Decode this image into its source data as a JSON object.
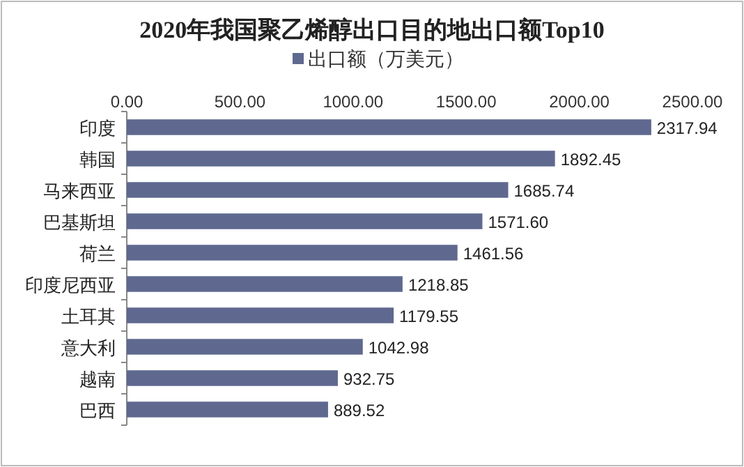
{
  "chart_data": {
    "type": "bar",
    "orientation": "horizontal",
    "title": "2020年我国聚乙烯醇出口目的地出口额Top10",
    "categories": [
      "印度",
      "韩国",
      "马来西亚",
      "巴基斯坦",
      "荷兰",
      "印度尼西亚",
      "土耳其",
      "意大利",
      "越南",
      "巴西"
    ],
    "series": [
      {
        "name": "出口额（万美元）",
        "color": "#5f6990",
        "values": [
          2317.94,
          1892.45,
          1685.74,
          1571.6,
          1461.56,
          1218.85,
          1179.55,
          1042.98,
          932.75,
          889.52
        ],
        "value_labels": [
          "2317.94",
          "1892.45",
          "1685.74",
          "1571.60",
          "1461.56",
          "1218.85",
          "1179.55",
          "1042.98",
          "932.75",
          "889.52"
        ]
      }
    ],
    "xlim": [
      0,
      2500
    ],
    "xticks": [
      {
        "value": 0,
        "label": "0.00"
      },
      {
        "value": 500,
        "label": "500.00"
      },
      {
        "value": 1000,
        "label": "1000.00"
      },
      {
        "value": 1500,
        "label": "1500.00"
      },
      {
        "value": 2000,
        "label": "2000.00"
      },
      {
        "value": 2500,
        "label": "2500.00"
      }
    ],
    "legend": "top",
    "grid": false
  }
}
